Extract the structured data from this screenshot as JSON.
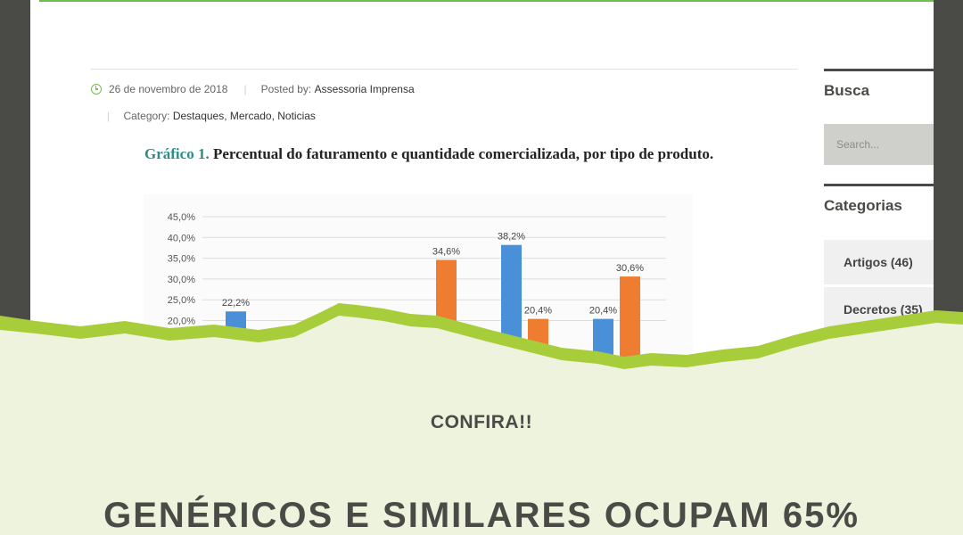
{
  "article": {
    "date": "26 de novembro de 2018",
    "posted_by_label": "Posted by:",
    "author": "Assessoria Imprensa",
    "category_label": "Category:",
    "categories": "Destaques, Mercado, Noticias"
  },
  "chart_title": {
    "number": "Gráfico 1.",
    "text": "Percentual do faturamento e quantidade comercializada, por tipo de produto."
  },
  "chart_data": {
    "type": "bar",
    "yticks": [
      "45,0%",
      "40,0%",
      "35,0%",
      "30,0%",
      "25,0%",
      "20,0%"
    ],
    "ylim": [
      0,
      45
    ],
    "grid": true,
    "series": [
      {
        "color": "#4a90d9",
        "values": [
          22.2,
          null,
          null,
          38.2,
          20.4
        ],
        "labels": [
          "22,2%",
          "",
          "",
          "38,2%",
          "20,4%"
        ]
      },
      {
        "color": "#ee7d31",
        "values": [
          null,
          null,
          34.6,
          20.4,
          30.6
        ],
        "labels": [
          "",
          "",
          "34,6%",
          "20,4%",
          "30,6%"
        ]
      }
    ]
  },
  "sidebar": {
    "search_heading": "Busca",
    "search_placeholder": "Search...",
    "categories_heading": "Categorias",
    "items": [
      {
        "label": "Artigos (46)"
      },
      {
        "label": "Decretos (35)"
      }
    ]
  },
  "colors": {
    "accent_green": "#a8cd3a",
    "dark": "#4a4b47",
    "band": "#eef3dd"
  },
  "overlay": {
    "kicker": "CONFIRA!!",
    "headline": "GENÉRICOS E SIMILARES OCUPAM 65%"
  }
}
